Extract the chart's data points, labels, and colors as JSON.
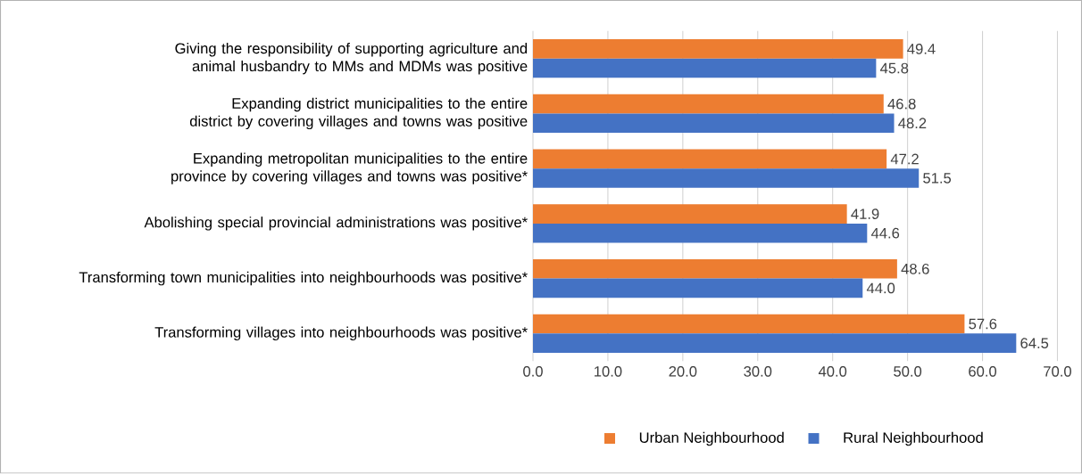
{
  "chart_data": {
    "type": "bar",
    "orientation": "horizontal",
    "categories": [
      "Giving the responsibility of supporting agriculture and animal husbandry to MMs and MDMs was positive",
      "Expanding district municipalities to the entire district by covering villages and towns was positive",
      "Expanding metropolitan municipalities to the entire province by covering villages and towns was positive*",
      "Abolishing special provincial administrations was positive*",
      "Transforming town municipalities into neighbourhoods was positive*",
      "Transforming villages into neighbourhoods was positive*"
    ],
    "series": [
      {
        "name": "Urban Neighbourhood",
        "color": "#ed7d31",
        "values": [
          49.4,
          46.8,
          47.2,
          41.9,
          48.6,
          57.6
        ],
        "value_labels": [
          "49.4",
          "46.8",
          "47.2",
          "41.9",
          "48.6",
          "57.6"
        ]
      },
      {
        "name": "Rural Neighbourhood",
        "color": "#4472c4",
        "values": [
          45.8,
          48.2,
          51.5,
          44.6,
          44.0,
          64.5
        ],
        "value_labels": [
          "45.8",
          "48.2",
          "51.5",
          "44.6",
          "44.0",
          "64.5"
        ]
      }
    ],
    "xlim": [
      0,
      70
    ],
    "xticks": [
      {
        "value": 0,
        "label": "0.0"
      },
      {
        "value": 10,
        "label": "10.0"
      },
      {
        "value": 20,
        "label": "20.0"
      },
      {
        "value": 30,
        "label": "30.0"
      },
      {
        "value": 40,
        "label": "40.0"
      },
      {
        "value": 50,
        "label": "50.0"
      },
      {
        "value": 60,
        "label": "60.0"
      },
      {
        "value": 70,
        "label": "70.0"
      }
    ],
    "grid": "x",
    "legend": "bottom"
  }
}
